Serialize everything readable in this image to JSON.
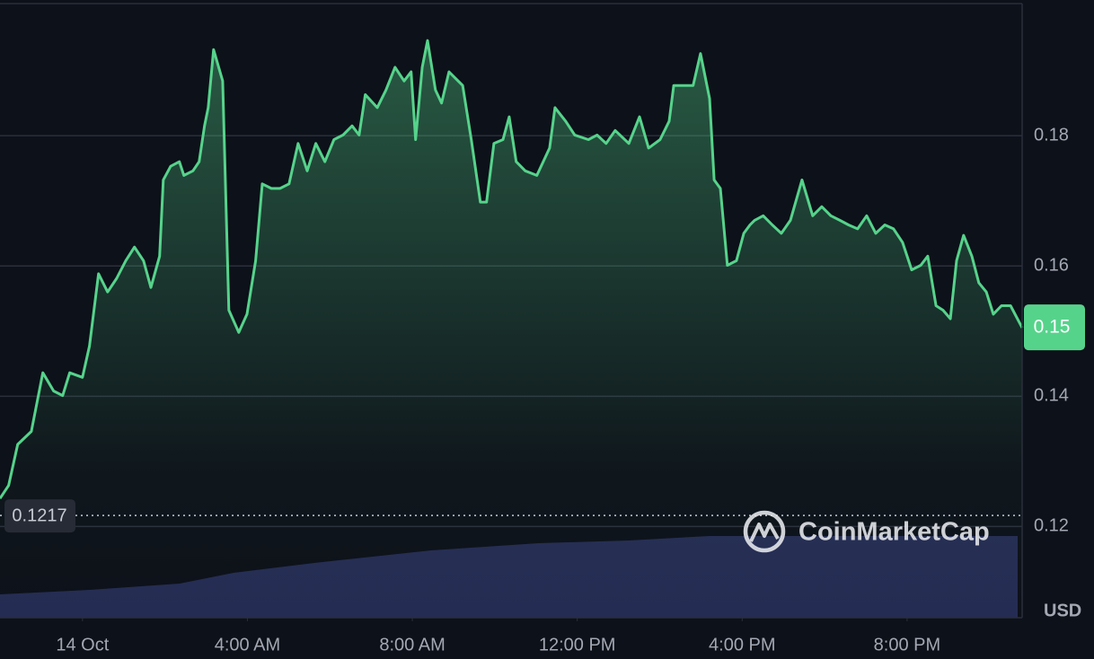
{
  "chart_data": {
    "type": "line",
    "color": "#56d38b",
    "x": [
      -2.0,
      -1.79,
      -1.57,
      -1.24,
      -0.96,
      -0.7,
      -0.48,
      -0.31,
      0,
      0.17,
      0.39,
      0.61,
      0.83,
      1.05,
      1.26,
      1.48,
      1.66,
      1.87,
      1.96,
      2.14,
      2.35,
      2.46,
      2.68,
      2.83,
      2.96,
      3.05,
      3.18,
      3.4,
      3.55,
      3.79,
      3.99,
      4.2,
      4.36,
      4.58,
      4.79,
      5.01,
      5.23,
      5.45,
      5.66,
      5.88,
      6.1,
      6.32,
      6.54,
      6.71,
      6.86,
      7.15,
      7.36,
      7.58,
      7.8,
      7.97,
      8.08,
      8.24,
      8.37,
      8.56,
      8.71,
      8.89,
      9.22,
      9.43,
      9.65,
      9.8,
      9.98,
      10.2,
      10.35,
      10.52,
      10.74,
      11.02,
      11.33,
      11.46,
      11.72,
      11.94,
      12.27,
      12.48,
      12.7,
      12.92,
      13.25,
      13.51,
      13.73,
      14.01,
      14.23,
      14.34,
      14.6,
      14.81,
      14.99,
      15.21,
      15.32,
      15.47,
      15.64,
      15.86,
      16.04,
      16.19,
      16.3,
      16.51,
      16.73,
      16.95,
      17.17,
      17.45,
      17.71,
      17.93,
      18.15,
      18.37,
      18.58,
      18.8,
      19.02,
      19.24,
      19.46,
      19.67,
      19.89,
      20.11,
      20.33,
      20.5,
      20.7,
      20.87,
      21.05,
      21.2,
      21.37,
      21.57,
      21.74,
      21.92,
      22.09,
      22.29,
      22.51,
      22.79
    ],
    "values": [
      0.1243,
      0.1263,
      0.1326,
      0.1346,
      0.1436,
      0.1408,
      0.1401,
      0.1436,
      0.1429,
      0.1477,
      0.1588,
      0.156,
      0.1581,
      0.1608,
      0.1629,
      0.1608,
      0.1567,
      0.1615,
      0.1732,
      0.1753,
      0.176,
      0.1739,
      0.1746,
      0.176,
      0.1815,
      0.1843,
      0.1932,
      0.1884,
      0.1532,
      0.1498,
      0.1526,
      0.1608,
      0.1726,
      0.1719,
      0.1719,
      0.1726,
      0.1788,
      0.1746,
      0.1788,
      0.176,
      0.1794,
      0.1801,
      0.1815,
      0.1801,
      0.1863,
      0.1843,
      0.187,
      0.1905,
      0.1884,
      0.1898,
      0.1794,
      0.1905,
      0.1946,
      0.187,
      0.185,
      0.1898,
      0.1877,
      0.1794,
      0.1698,
      0.1698,
      0.1788,
      0.1794,
      0.1829,
      0.176,
      0.1746,
      0.1739,
      0.1781,
      0.1843,
      0.1822,
      0.1801,
      0.1794,
      0.1801,
      0.1788,
      0.1808,
      0.1788,
      0.1829,
      0.1781,
      0.1794,
      0.1822,
      0.1877,
      0.1877,
      0.1877,
      0.1926,
      0.1857,
      0.1732,
      0.1719,
      0.1601,
      0.1608,
      0.165,
      0.1663,
      0.167,
      0.1677,
      0.1663,
      0.165,
      0.167,
      0.1732,
      0.1677,
      0.1691,
      0.1677,
      0.167,
      0.1663,
      0.1657,
      0.1677,
      0.165,
      0.1663,
      0.1657,
      0.1636,
      0.1594,
      0.1601,
      0.1615,
      0.1539,
      0.1532,
      0.1519,
      0.1608,
      0.1647,
      0.1615,
      0.1574,
      0.156,
      0.1526,
      0.1539,
      0.1539,
      0.1505
    ],
    "xlim": [
      -2,
      22.79
    ],
    "xticks": [
      {
        "value": 0,
        "label": "14 Oct"
      },
      {
        "value": 4,
        "label": "4:00 AM"
      },
      {
        "value": 8,
        "label": "8:00 AM"
      },
      {
        "value": 12,
        "label": "12:00 PM"
      },
      {
        "value": 16,
        "label": "4:00 PM"
      },
      {
        "value": 20,
        "label": "8:00 PM"
      }
    ],
    "ylim": [
      0.106,
      0.2
    ],
    "yticks": [
      0.12,
      0.14,
      0.16,
      0.18
    ],
    "grid": true,
    "open_price": 0.1217,
    "current_price_label": "0.15",
    "y_unit": "USD",
    "watermark": "CoinMarketCap"
  }
}
